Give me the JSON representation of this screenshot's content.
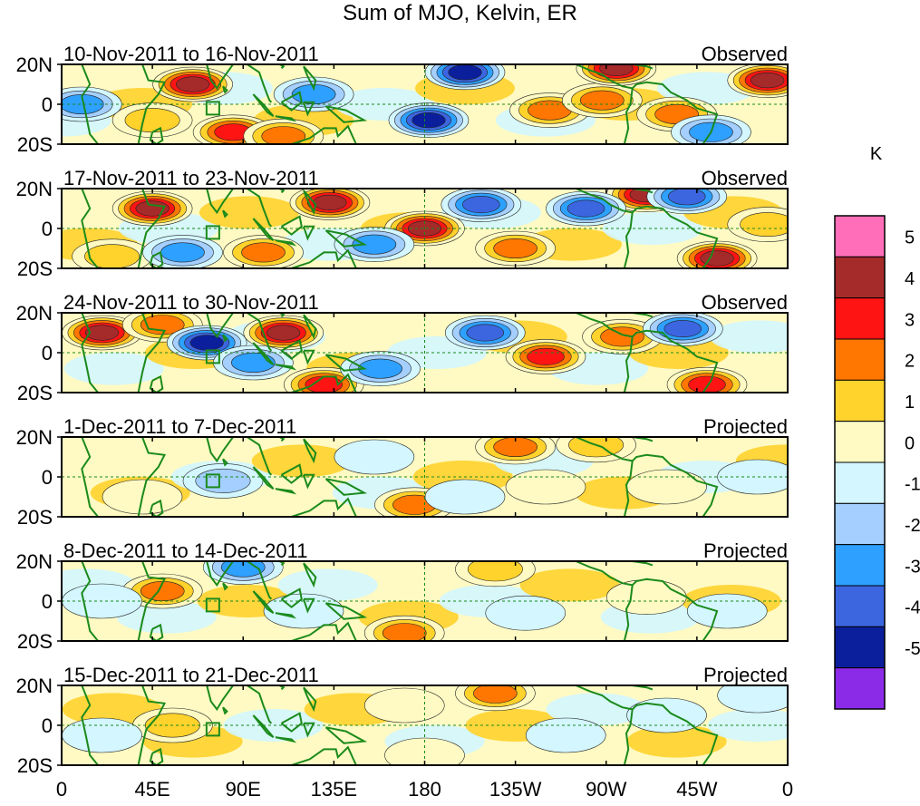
{
  "chart_data": {
    "type": "heatmap",
    "title": "Sum of MJO, Kelvin, ER",
    "units": "K",
    "x_ticks": [
      "0",
      "45E",
      "90E",
      "135E",
      "180",
      "135W",
      "90W",
      "45W",
      "0"
    ],
    "y_ticks": [
      "20N",
      "0",
      "20S"
    ],
    "xlim": [
      0,
      360
    ],
    "ylim": [
      -20,
      20
    ],
    "colorbar": {
      "labels": [
        "5",
        "4",
        "3",
        "2",
        "1",
        "0",
        "-1",
        "-2",
        "-3",
        "-4",
        "-5"
      ],
      "levels": [
        5,
        4,
        3,
        2,
        1,
        0,
        -1,
        -2,
        -3,
        -4,
        -5
      ],
      "colors": [
        "#ff6eb9",
        "#a52a2a",
        "#ff1414",
        "#ff7700",
        "#ffd22c",
        "#fffac3",
        "#d3f6ff",
        "#a4cfff",
        "#2ea0ff",
        "#3c66e0",
        "#0b1f9c",
        "#8b2be8"
      ]
    },
    "panels": [
      {
        "period": "10-Nov-2011 to 16-Nov-2011",
        "status": "Observed",
        "features": [
          {
            "lon": 65,
            "lat": 10,
            "value": 5
          },
          {
            "lon": 85,
            "lat": -14,
            "value": 4
          },
          {
            "lon": 110,
            "lat": -16,
            "value": 3
          },
          {
            "lon": 242,
            "lat": -3,
            "value": 3
          },
          {
            "lon": 268,
            "lat": 2,
            "value": 3
          },
          {
            "lon": 305,
            "lat": -5,
            "value": 3
          },
          {
            "lon": 350,
            "lat": 12,
            "value": 5
          },
          {
            "lon": 45,
            "lat": -8,
            "value": 2
          },
          {
            "lon": 200,
            "lat": 16,
            "value": -5
          },
          {
            "lon": 182,
            "lat": -8,
            "value": -5
          },
          {
            "lon": 10,
            "lat": 0,
            "value": -3
          },
          {
            "lon": 125,
            "lat": 5,
            "value": -3
          },
          {
            "lon": 322,
            "lat": -14,
            "value": -3
          },
          {
            "lon": 275,
            "lat": 18,
            "value": 5
          }
        ]
      },
      {
        "period": "17-Nov-2011 to 23-Nov-2011",
        "status": "Observed",
        "features": [
          {
            "lon": 45,
            "lat": 10,
            "value": 5
          },
          {
            "lon": 133,
            "lat": 13,
            "value": 5
          },
          {
            "lon": 180,
            "lat": 0,
            "value": 5
          },
          {
            "lon": 325,
            "lat": -15,
            "value": 5
          },
          {
            "lon": 290,
            "lat": 17,
            "value": 5
          },
          {
            "lon": 225,
            "lat": -10,
            "value": 3
          },
          {
            "lon": 25,
            "lat": -14,
            "value": 2
          },
          {
            "lon": 100,
            "lat": -12,
            "value": 3
          },
          {
            "lon": 208,
            "lat": 12,
            "value": -4
          },
          {
            "lon": 260,
            "lat": 10,
            "value": -4
          },
          {
            "lon": 310,
            "lat": 16,
            "value": -4
          },
          {
            "lon": 60,
            "lat": -12,
            "value": -3
          },
          {
            "lon": 155,
            "lat": -8,
            "value": -3
          },
          {
            "lon": 350,
            "lat": 2,
            "value": 2
          }
        ]
      },
      {
        "period": "24-Nov-2011 to 30-Nov-2011",
        "status": "Observed",
        "features": [
          {
            "lon": 20,
            "lat": 10,
            "value": 5
          },
          {
            "lon": 110,
            "lat": 10,
            "value": 5
          },
          {
            "lon": 240,
            "lat": -2,
            "value": 4
          },
          {
            "lon": 320,
            "lat": -16,
            "value": 4
          },
          {
            "lon": 130,
            "lat": -16,
            "value": 4
          },
          {
            "lon": 50,
            "lat": 14,
            "value": 3
          },
          {
            "lon": 278,
            "lat": 8,
            "value": 3
          },
          {
            "lon": 72,
            "lat": 5,
            "value": -5
          },
          {
            "lon": 210,
            "lat": 10,
            "value": -4
          },
          {
            "lon": 308,
            "lat": 12,
            "value": -4
          },
          {
            "lon": 158,
            "lat": -8,
            "value": -3
          },
          {
            "lon": 95,
            "lat": -5,
            "value": -3
          }
        ]
      },
      {
        "period": "1-Dec-2011 to 7-Dec-2011",
        "status": "Projected",
        "features": [
          {
            "lon": 175,
            "lat": -14,
            "value": 3
          },
          {
            "lon": 225,
            "lat": 15,
            "value": 3
          },
          {
            "lon": 265,
            "lat": 16,
            "value": 2
          },
          {
            "lon": 40,
            "lat": -10,
            "value": 1
          },
          {
            "lon": 300,
            "lat": -5,
            "value": 1
          },
          {
            "lon": 240,
            "lat": -5,
            "value": 1
          },
          {
            "lon": 80,
            "lat": -2,
            "value": -2
          },
          {
            "lon": 155,
            "lat": 10,
            "value": -1
          },
          {
            "lon": 200,
            "lat": -10,
            "value": -1
          },
          {
            "lon": 345,
            "lat": 0,
            "value": -1
          }
        ]
      },
      {
        "period": "8-Dec-2011 to 14-Dec-2011",
        "status": "Projected",
        "features": [
          {
            "lon": 50,
            "lat": 5,
            "value": 3
          },
          {
            "lon": 170,
            "lat": -16,
            "value": 3
          },
          {
            "lon": 215,
            "lat": 16,
            "value": 2
          },
          {
            "lon": 290,
            "lat": 2,
            "value": 1
          },
          {
            "lon": 90,
            "lat": 17,
            "value": -3
          },
          {
            "lon": 20,
            "lat": 0,
            "value": -1
          },
          {
            "lon": 230,
            "lat": -6,
            "value": -1
          },
          {
            "lon": 330,
            "lat": -5,
            "value": -1
          },
          {
            "lon": 120,
            "lat": -5,
            "value": -1
          }
        ]
      },
      {
        "period": "15-Dec-2011 to 21-Dec-2011",
        "status": "Projected",
        "features": [
          {
            "lon": 55,
            "lat": 0,
            "value": 2
          },
          {
            "lon": 215,
            "lat": 16,
            "value": 3
          },
          {
            "lon": 170,
            "lat": 10,
            "value": 1
          },
          {
            "lon": 180,
            "lat": -15,
            "value": 1
          },
          {
            "lon": 300,
            "lat": 5,
            "value": -1
          },
          {
            "lon": 250,
            "lat": -5,
            "value": -1
          },
          {
            "lon": 20,
            "lat": -5,
            "value": -1
          },
          {
            "lon": 345,
            "lat": 15,
            "value": -1
          }
        ]
      }
    ]
  }
}
